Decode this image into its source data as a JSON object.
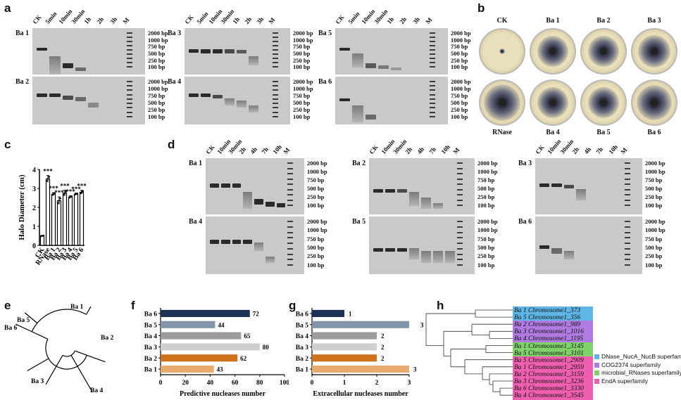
{
  "panels": {
    "a": "a",
    "b": "b",
    "c": "c",
    "d": "d",
    "e": "e",
    "f": "f",
    "g": "g",
    "h": "h"
  },
  "gel_a": {
    "lanes": [
      "CK",
      "5min",
      "10min",
      "30min",
      "1h",
      "2h",
      "3h",
      "M"
    ],
    "groups": [
      [
        "Ba 1",
        "Ba 2"
      ],
      [
        "Ba 3",
        "Ba 4"
      ],
      [
        "Ba 5",
        "Ba 6"
      ]
    ],
    "ladder": [
      "2000 bp",
      "1000 bp",
      "750 bp",
      "500 bp",
      "250 bp",
      "100 bp"
    ]
  },
  "gel_d": {
    "lanes": [
      "CK",
      "10min",
      "30min",
      "2h",
      "4h",
      "7h",
      "10h",
      "M"
    ],
    "groups": [
      [
        "Ba 1",
        "Ba 4"
      ],
      [
        "Ba 2",
        "Ba 5"
      ],
      [
        "Ba 3",
        "Ba 6"
      ]
    ],
    "ladder": [
      "2000 bp",
      "1000 bp",
      "750 bp",
      "500 bp",
      "250 bp",
      "100 bp"
    ]
  },
  "plates": {
    "top": [
      "CK",
      "Ba 1",
      "Ba 2",
      "Ba 3"
    ],
    "bottom": [
      "RNase",
      "Ba 4",
      "Ba 5",
      "Ba 6"
    ]
  },
  "chart_data": [
    {
      "panel": "c",
      "type": "bar",
      "categories": [
        "CK",
        "RNase",
        "Ba 1",
        "Ba 2",
        "Ba 3",
        "Ba 4",
        "Ba 5",
        "Ba 6"
      ],
      "values": [
        0.5,
        3.5,
        2.7,
        2.35,
        2.75,
        2.55,
        2.7,
        2.8
      ],
      "errors": [
        0.02,
        0.18,
        0.08,
        0.2,
        0.15,
        0.06,
        0.05,
        0.1
      ],
      "significance": [
        "",
        "***",
        "***",
        "***",
        "***",
        "***",
        "***",
        "***"
      ],
      "ylabel": "Halo Diameter (cm)",
      "ylim": [
        0,
        4
      ],
      "yticks": [
        "0",
        "1",
        "2",
        "3",
        "4"
      ]
    },
    {
      "panel": "f",
      "type": "bar",
      "orientation": "horizontal",
      "categories": [
        "Ba 6",
        "Ba 5",
        "Ba 4",
        "Ba 3",
        "Ba 2",
        "Ba 1"
      ],
      "values": [
        72,
        44,
        65,
        80,
        62,
        43
      ],
      "value_labels": [
        "72",
        "44",
        "65",
        "80",
        "62",
        "43"
      ],
      "colors": [
        "#1d3252",
        "#8494aa",
        "#9c9c9c",
        "#cfcfcf",
        "#d0711c",
        "#e8ac6e"
      ],
      "xlabel": "Predictive nucleases number",
      "xlim": [
        0,
        100
      ],
      "xticks": [
        "0",
        "20",
        "40",
        "60",
        "80",
        "100"
      ]
    },
    {
      "panel": "g",
      "type": "bar",
      "orientation": "horizontal",
      "categories": [
        "Ba 6",
        "Ba 5",
        "Ba 4",
        "Ba 3",
        "Ba 2",
        "Ba 1"
      ],
      "values": [
        1,
        3,
        2,
        2,
        2,
        3
      ],
      "value_labels": [
        "1",
        "3",
        "2",
        "2",
        "2",
        "3"
      ],
      "colors": [
        "#1d3252",
        "#8494aa",
        "#9c9c9c",
        "#cfcfcf",
        "#d0711c",
        "#e8ac6e"
      ],
      "xlabel": "Extracellular nucleases number",
      "xlim": [
        0,
        3
      ],
      "xticks": [
        "0",
        "1",
        "2",
        "3"
      ]
    }
  ],
  "tree_e": {
    "leaves": [
      "Ba 1",
      "Ba 2",
      "Ba 4",
      "Ba 3",
      "Ba 6",
      "Ba 5"
    ]
  },
  "tree_h": {
    "leaves": [
      {
        "label": "Ba 1 Chromosome1_373",
        "color": "#5fb6e6"
      },
      {
        "label": "Ba 5 Chromosome1_356",
        "color": "#5fb6e6"
      },
      {
        "label": "Ba 2 Chromosome1_989",
        "color": "#b07be0"
      },
      {
        "label": "Ba 3 Chromosome1_1016",
        "color": "#b07be0"
      },
      {
        "label": "Ba 4 Chromosome1_1195",
        "color": "#b07be0"
      },
      {
        "label": "Ba 1 Chromosome1_3145",
        "color": "#7fd36a"
      },
      {
        "label": "Ba 5 Chromosome1_3101",
        "color": "#7fd36a"
      },
      {
        "label": "Ba 5 Chromosome1_2909",
        "color": "#ee5fb0"
      },
      {
        "label": "Ba 1 Chromosome1_2959",
        "color": "#ee5fb0"
      },
      {
        "label": "Ba 2 Chromosome1_3159",
        "color": "#ee5fb0"
      },
      {
        "label": "Ba 3 Chromosome1_3236",
        "color": "#ee5fb0"
      },
      {
        "label": "Ba 6 Chromosome1_3330",
        "color": "#ee5fb0"
      },
      {
        "label": "Ba 4 Chromosome1_3545",
        "color": "#ee5fb0"
      }
    ],
    "legend": [
      {
        "label": "DNase_NucA_NucB superfamily",
        "color": "#5fb6e6"
      },
      {
        "label": "COG2374 superfamily",
        "color": "#b07be0"
      },
      {
        "label": "microbial_RNases superfamily",
        "color": "#7fd36a"
      },
      {
        "label": "EndA superfamily",
        "color": "#ee5fb0"
      }
    ]
  }
}
